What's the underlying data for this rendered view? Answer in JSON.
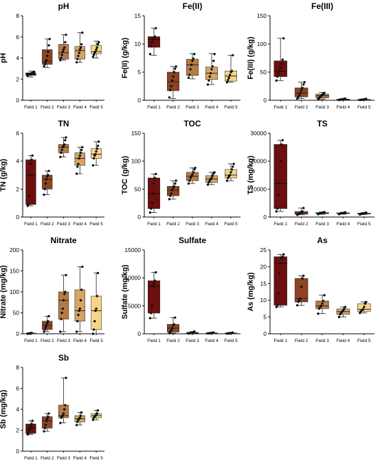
{
  "figure": {
    "field_labels": [
      "Field 1",
      "Field 2",
      "Field 3",
      "Field 4",
      "Field 5"
    ]
  },
  "colors": {
    "field_1": "#6b0f0f",
    "field_2": "#8e4323",
    "field_3": "#b67a45",
    "field_4": "#d7a465",
    "field_5": "#f6d585",
    "points": "#111111"
  },
  "chart_data": [
    {
      "type": "box",
      "title": "pH",
      "ylabel": "pH",
      "ylim": [
        0,
        8
      ],
      "yticks": [
        0,
        2,
        4,
        6,
        8
      ],
      "categories": [
        "Field 1",
        "Field 2",
        "Field 3",
        "Field 4",
        "Field 5"
      ],
      "boxes": [
        {
          "min": 2.2,
          "q1": 2.35,
          "median": 2.5,
          "q3": 2.6,
          "max": 2.75
        },
        {
          "min": 3.1,
          "q1": 3.4,
          "median": 3.7,
          "q3": 4.8,
          "max": 5.8
        },
        {
          "min": 3.8,
          "q1": 3.9,
          "median": 4.5,
          "q3": 5.3,
          "max": 6.2
        },
        {
          "min": 3.6,
          "q1": 3.9,
          "median": 4.7,
          "q3": 5.1,
          "max": 6.4
        },
        {
          "min": 4.0,
          "q1": 4.4,
          "median": 4.6,
          "q3": 5.2,
          "max": 5.6
        }
      ],
      "points": [
        [
          2.3,
          2.4,
          2.45,
          2.5,
          2.5,
          2.55,
          2.6,
          2.65,
          2.7
        ],
        [
          3.2,
          3.4,
          3.6,
          3.8,
          4.2,
          4.6,
          5.2,
          5.8
        ],
        [
          3.8,
          4.0,
          4.3,
          4.6,
          4.8,
          5.0,
          5.5,
          6.2
        ],
        [
          3.6,
          3.9,
          4.2,
          4.5,
          4.8,
          5.0,
          5.3,
          6.4
        ],
        [
          4.1,
          4.3,
          4.5,
          4.6,
          4.8,
          5.0,
          5.3,
          5.5
        ]
      ]
    },
    {
      "type": "box",
      "title": "Fe(II)",
      "ylabel": "Fe(II) (g/kg)",
      "ylim": [
        0,
        15
      ],
      "yticks": [
        0,
        5,
        10,
        15
      ],
      "categories": [
        "Field 1",
        "Field 2",
        "Field 3",
        "Field 4",
        "Field 5"
      ],
      "boxes": [
        {
          "min": 8.0,
          "q1": 9.4,
          "median": 10.8,
          "q3": 11.3,
          "max": 12.8
        },
        {
          "min": 0.3,
          "q1": 1.7,
          "median": 3.3,
          "q3": 5.0,
          "max": 6.0
        },
        {
          "min": 3.8,
          "q1": 4.4,
          "median": 6.3,
          "q3": 7.3,
          "max": 8.3
        },
        {
          "min": 2.8,
          "q1": 3.7,
          "median": 4.8,
          "q3": 5.9,
          "max": 8.3
        },
        {
          "min": 3.2,
          "q1": 3.4,
          "median": 4.3,
          "q3": 5.2,
          "max": 8.0
        }
      ],
      "points": [
        [
          8.2,
          9.6,
          10.3,
          10.8,
          11.0,
          11.3,
          12.8
        ],
        [
          0.5,
          1.8,
          2.5,
          3.5,
          4.2,
          5.0,
          5.6,
          6.0
        ],
        [
          4.0,
          4.5,
          5.5,
          6.3,
          7.0,
          7.4,
          8.2
        ],
        [
          2.8,
          3.5,
          4.2,
          4.8,
          5.5,
          6.0,
          7.0,
          8.2
        ],
        [
          3.2,
          3.6,
          4.0,
          4.5,
          5.0,
          5.2,
          8.0
        ]
      ]
    },
    {
      "type": "box",
      "title": "Fe(III)",
      "ylabel": "Fe(III) (g/kg)",
      "ylim": [
        0,
        150
      ],
      "yticks": [
        0,
        50,
        100,
        150
      ],
      "categories": [
        "Field 1",
        "Field 2",
        "Field 3",
        "Field 4",
        "Field 5"
      ],
      "boxes": [
        {
          "min": 35,
          "q1": 42,
          "median": 52,
          "q3": 70,
          "max": 110
        },
        {
          "min": 3,
          "q1": 6,
          "median": 13,
          "q3": 22,
          "max": 32
        },
        {
          "min": 2,
          "q1": 4,
          "median": 8,
          "q3": 11,
          "max": 14
        },
        {
          "min": 0.5,
          "q1": 1,
          "median": 1.5,
          "q3": 2,
          "max": 3
        },
        {
          "min": 0.5,
          "q1": 0.8,
          "median": 1,
          "q3": 1.5,
          "max": 2.5
        }
      ],
      "points": [
        [
          35,
          42,
          48,
          52,
          58,
          65,
          72,
          110
        ],
        [
          3,
          6,
          9,
          13,
          18,
          22,
          28,
          32
        ],
        [
          2,
          4,
          6,
          8,
          10,
          11,
          13
        ],
        [
          0.5,
          1,
          1.2,
          1.5,
          2,
          2.5,
          3
        ],
        [
          0.5,
          0.8,
          1,
          1.2,
          1.5,
          2,
          2.5
        ]
      ]
    },
    {
      "type": "box",
      "title": "TN",
      "ylabel": "TN (g/kg)",
      "ylim": [
        0,
        6
      ],
      "yticks": [
        0,
        2,
        4,
        6
      ],
      "categories": [
        "Field 1",
        "Field 2",
        "Field 3",
        "Field 4",
        "Field 5"
      ],
      "boxes": [
        {
          "min": 0.8,
          "q1": 0.9,
          "median": 3.0,
          "q3": 4.1,
          "max": 4.4
        },
        {
          "min": 1.6,
          "q1": 2.0,
          "median": 2.7,
          "q3": 3.0,
          "max": 3.3
        },
        {
          "min": 4.3,
          "q1": 4.6,
          "median": 5.0,
          "q3": 5.2,
          "max": 5.7
        },
        {
          "min": 3.1,
          "q1": 3.7,
          "median": 4.2,
          "q3": 4.6,
          "max": 5.0
        },
        {
          "min": 3.7,
          "q1": 4.2,
          "median": 4.5,
          "q3": 4.9,
          "max": 5.4
        }
      ],
      "points": [
        [
          0.8,
          0.9,
          1.5,
          3.0,
          3.8,
          4.1,
          4.4
        ],
        [
          1.6,
          2.0,
          2.4,
          2.7,
          2.9,
          3.0,
          3.3
        ],
        [
          4.3,
          4.6,
          4.8,
          5.0,
          5.1,
          5.2,
          5.5,
          5.7
        ],
        [
          3.1,
          3.6,
          3.8,
          4.2,
          4.4,
          4.6,
          4.8,
          5.0
        ],
        [
          3.7,
          4.2,
          4.4,
          4.5,
          4.7,
          4.9,
          5.1,
          5.4
        ]
      ]
    },
    {
      "type": "box",
      "title": "TOC",
      "ylabel": "TOC (g/kg)",
      "ylim": [
        0,
        150
      ],
      "yticks": [
        0,
        50,
        100,
        150
      ],
      "categories": [
        "Field 1",
        "Field 2",
        "Field 3",
        "Field 4",
        "Field 5"
      ],
      "boxes": [
        {
          "min": 8,
          "q1": 15,
          "median": 42,
          "q3": 70,
          "max": 77
        },
        {
          "min": 32,
          "q1": 38,
          "median": 48,
          "q3": 55,
          "max": 65
        },
        {
          "min": 60,
          "q1": 65,
          "median": 73,
          "q3": 80,
          "max": 88
        },
        {
          "min": 58,
          "q1": 62,
          "median": 68,
          "q3": 74,
          "max": 80
        },
        {
          "min": 65,
          "q1": 70,
          "median": 75,
          "q3": 85,
          "max": 95
        }
      ],
      "points": [
        [
          8,
          15,
          25,
          42,
          60,
          70,
          77
        ],
        [
          32,
          38,
          42,
          48,
          52,
          55,
          60,
          65
        ],
        [
          60,
          65,
          70,
          73,
          76,
          80,
          85,
          88
        ],
        [
          58,
          62,
          65,
          68,
          70,
          74,
          78,
          80
        ],
        [
          65,
          70,
          73,
          75,
          80,
          85,
          90,
          95
        ]
      ]
    },
    {
      "type": "box",
      "title": "TS",
      "ylabel": "TS (mg/kg)",
      "ylim": [
        0,
        30000
      ],
      "yticks": [
        0,
        10000,
        20000,
        30000
      ],
      "categories": [
        "Field 1",
        "Field 2",
        "Field 3",
        "Field 4",
        "Field 5"
      ],
      "boxes": [
        {
          "min": 2000,
          "q1": 3000,
          "median": 12000,
          "q3": 26000,
          "max": 27500
        },
        {
          "min": 800,
          "q1": 1000,
          "median": 1400,
          "q3": 2000,
          "max": 3200
        },
        {
          "min": 1000,
          "q1": 1200,
          "median": 1400,
          "q3": 1600,
          "max": 1800
        },
        {
          "min": 1000,
          "q1": 1200,
          "median": 1350,
          "q3": 1500,
          "max": 1700
        },
        {
          "min": 900,
          "q1": 1100,
          "median": 1250,
          "q3": 1400,
          "max": 1600
        }
      ],
      "points": [
        [
          2000,
          3000,
          8000,
          12000,
          20000,
          26000,
          27500
        ],
        [
          800,
          1000,
          1200,
          1400,
          1800,
          2000,
          3200
        ],
        [
          1000,
          1200,
          1300,
          1400,
          1500,
          1600,
          1800
        ],
        [
          1000,
          1200,
          1300,
          1350,
          1450,
          1500,
          1700
        ],
        [
          900,
          1100,
          1200,
          1250,
          1350,
          1400,
          1600
        ]
      ]
    },
    {
      "type": "box",
      "title": "Nitrate",
      "ylabel": "Nitrate (mg/kg)",
      "ylim": [
        0,
        200
      ],
      "yticks": [
        0,
        50,
        100,
        150,
        200
      ],
      "categories": [
        "Field 1",
        "Field 2",
        "Field 3",
        "Field 4",
        "Field 5"
      ],
      "boxes": [
        {
          "min": 0,
          "q1": 0.5,
          "median": 1,
          "q3": 1.5,
          "max": 2
        },
        {
          "min": 5,
          "q1": 10,
          "median": 20,
          "q3": 30,
          "max": 42
        },
        {
          "min": 5,
          "q1": 35,
          "median": 80,
          "q3": 100,
          "max": 140
        },
        {
          "min": 5,
          "q1": 30,
          "median": 55,
          "q3": 105,
          "max": 160
        },
        {
          "min": 0,
          "q1": 10,
          "median": 55,
          "q3": 90,
          "max": 145
        }
      ],
      "points": [
        [
          0,
          0.5,
          1,
          1,
          1.5,
          2
        ],
        [
          5,
          10,
          15,
          20,
          25,
          30,
          42
        ],
        [
          5,
          35,
          50,
          60,
          80,
          95,
          100,
          140
        ],
        [
          5,
          30,
          45,
          55,
          60,
          80,
          105,
          160
        ],
        [
          0,
          10,
          30,
          55,
          60,
          90,
          145
        ]
      ]
    },
    {
      "type": "box",
      "title": "Sulfate",
      "ylabel": "Sulfate (mg/kg)",
      "ylim": [
        0,
        15000
      ],
      "yticks": [
        0,
        5000,
        10000,
        15000
      ],
      "categories": [
        "Field 1",
        "Field 2",
        "Field 3",
        "Field 4",
        "Field 5"
      ],
      "boxes": [
        {
          "min": 2800,
          "q1": 3700,
          "median": 8500,
          "q3": 9500,
          "max": 11000
        },
        {
          "min": 100,
          "q1": 300,
          "median": 1000,
          "q3": 1700,
          "max": 2900
        },
        {
          "min": 50,
          "q1": 100,
          "median": 150,
          "q3": 250,
          "max": 400
        },
        {
          "min": 50,
          "q1": 80,
          "median": 120,
          "q3": 160,
          "max": 220
        },
        {
          "min": 30,
          "q1": 60,
          "median": 100,
          "q3": 140,
          "max": 200
        }
      ],
      "points": [
        [
          2800,
          3700,
          5000,
          8500,
          9000,
          9500,
          11000
        ],
        [
          100,
          300,
          600,
          1000,
          1500,
          1700,
          2900
        ],
        [
          50,
          100,
          120,
          150,
          200,
          250,
          400
        ],
        [
          50,
          80,
          100,
          120,
          140,
          160,
          220
        ],
        [
          30,
          60,
          80,
          100,
          120,
          140,
          200
        ]
      ]
    },
    {
      "type": "box",
      "title": "As",
      "ylabel": "As (mg/kg)",
      "ylim": [
        0,
        25
      ],
      "yticks": [
        0,
        5,
        10,
        15,
        20,
        25
      ],
      "categories": [
        "Field 1",
        "Field 2",
        "Field 3",
        "Field 4",
        "Field 5"
      ],
      "boxes": [
        {
          "min": 8,
          "q1": 8.5,
          "median": 21,
          "q3": 23,
          "max": 23.7
        },
        {
          "min": 8.5,
          "q1": 9.5,
          "median": 10.5,
          "q3": 16.5,
          "max": 17.3
        },
        {
          "min": 6,
          "q1": 7.5,
          "median": 8.3,
          "q3": 9.8,
          "max": 11.5
        },
        {
          "min": 5,
          "q1": 5.8,
          "median": 6.6,
          "q3": 7.4,
          "max": 8
        },
        {
          "min": 6.2,
          "q1": 6.7,
          "median": 7.3,
          "q3": 9,
          "max": 9.5
        }
      ],
      "points": [
        [
          8,
          8.5,
          12,
          18,
          21,
          22.5,
          23,
          23.7
        ],
        [
          8.5,
          9.5,
          10,
          10.5,
          14,
          16.5,
          17.3
        ],
        [
          6,
          7.5,
          8,
          8.3,
          9,
          9.8,
          11.5
        ],
        [
          5,
          5.8,
          6.2,
          6.6,
          7,
          7.4,
          8
        ],
        [
          6.2,
          6.7,
          7,
          7.3,
          8,
          9,
          9.5
        ]
      ]
    },
    {
      "type": "box",
      "title": "Sb",
      "ylabel": "Sb (mg/kg)",
      "ylim": [
        0,
        8
      ],
      "yticks": [
        0,
        2,
        4,
        6,
        8
      ],
      "categories": [
        "Field 1",
        "Field 2",
        "Field 3",
        "Field 4",
        "Field 5"
      ],
      "boxes": [
        {
          "min": 1.6,
          "q1": 1.7,
          "median": 2.2,
          "q3": 2.6,
          "max": 2.9
        },
        {
          "min": 1.9,
          "q1": 2.2,
          "median": 2.9,
          "q3": 3.3,
          "max": 3.6
        },
        {
          "min": 2.7,
          "q1": 3.2,
          "median": 3.4,
          "q3": 4.4,
          "max": 7.0
        },
        {
          "min": 2.5,
          "q1": 2.8,
          "median": 3.1,
          "q3": 3.4,
          "max": 3.7
        },
        {
          "min": 3.0,
          "q1": 3.2,
          "median": 3.4,
          "q3": 3.6,
          "max": 3.9
        }
      ],
      "points": [
        [
          1.6,
          1.7,
          2.0,
          2.2,
          2.4,
          2.6,
          2.9
        ],
        [
          1.9,
          2.2,
          2.5,
          2.9,
          3.1,
          3.3,
          3.6
        ],
        [
          2.7,
          3.2,
          3.3,
          3.4,
          3.6,
          4.0,
          4.4,
          7.0
        ],
        [
          2.5,
          2.8,
          3.0,
          3.1,
          3.2,
          3.4,
          3.7
        ],
        [
          3.0,
          3.2,
          3.3,
          3.4,
          3.5,
          3.6,
          3.9
        ]
      ]
    }
  ]
}
